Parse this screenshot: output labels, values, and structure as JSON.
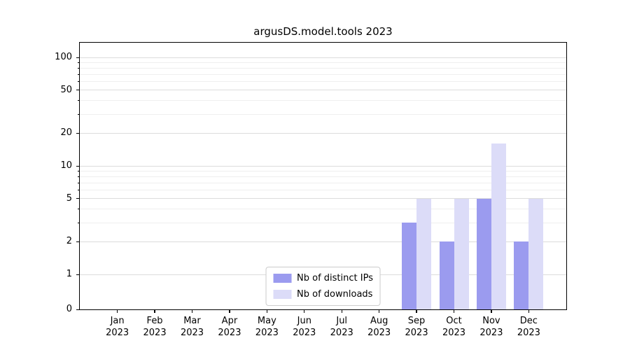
{
  "title": "argusDS.model.tools 2023",
  "chart_data": {
    "type": "bar",
    "title": "argusDS.model.tools 2023",
    "categories": [
      "Jan",
      "Feb",
      "Mar",
      "Apr",
      "May",
      "Jun",
      "Jul",
      "Aug",
      "Sep",
      "Oct",
      "Nov",
      "Dec"
    ],
    "category_year": "2023",
    "series": [
      {
        "name": "Nb of distinct IPs",
        "color": "#9b9bef",
        "values": [
          0,
          0,
          0,
          0,
          0,
          0,
          0,
          0,
          3,
          2,
          5,
          2
        ]
      },
      {
        "name": "Nb of downloads",
        "color": "#dcdcf8",
        "values": [
          0,
          0,
          0,
          0,
          0,
          0,
          0,
          0,
          5,
          5,
          16,
          5
        ]
      }
    ],
    "xlabel": "",
    "ylabel": "",
    "y_scale": "symlog",
    "y_ticks": [
      0,
      1,
      2,
      5,
      10,
      20,
      50,
      100
    ],
    "y_minor_ticks": [
      3,
      4,
      6,
      7,
      8,
      9,
      30,
      40,
      60,
      70,
      80,
      90
    ],
    "ylim": [
      0,
      140
    ],
    "grid": "horizontal",
    "legend_position": "lower center",
    "legend": [
      "Nb of distinct IPs",
      "Nb of downloads"
    ]
  },
  "colors": {
    "bar_distinct_ips": "#9b9bef",
    "bar_downloads": "#dcdcf8",
    "grid_major": "#dcdcdc",
    "grid_minor": "#efefef",
    "axis": "#000000",
    "legend_border": "#cccccc"
  }
}
